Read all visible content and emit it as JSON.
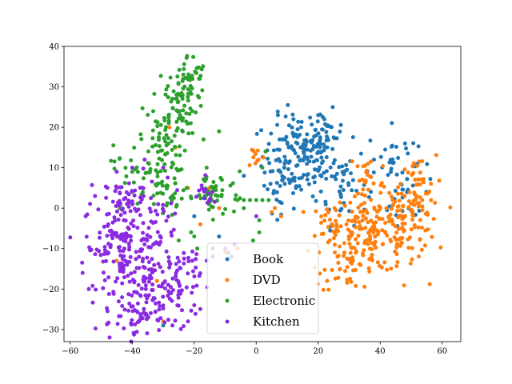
{
  "chart_data": {
    "type": "scatter",
    "title": "",
    "xlabel": "",
    "ylabel": "",
    "xlim": [
      -62,
      66
    ],
    "ylim": [
      -33,
      40
    ],
    "xticks": [
      -60,
      -40,
      -20,
      0,
      20,
      40,
      60
    ],
    "yticks": [
      -30,
      -20,
      -10,
      0,
      10,
      20,
      30,
      40
    ],
    "grid": false,
    "legend_position": "lower-center",
    "series": [
      {
        "name": "Book",
        "color": "#1f77b4",
        "clusters": [
          {
            "cx": 14,
            "cy": 13,
            "sx": 6,
            "sy": 5,
            "n": 150
          },
          {
            "cx": 28,
            "cy": 6,
            "sx": 4,
            "sy": 5,
            "n": 45
          },
          {
            "cx": 44,
            "cy": 12,
            "sx": 4,
            "sy": 4,
            "n": 30
          },
          {
            "cx": 48,
            "cy": 2,
            "sx": 4,
            "sy": 3,
            "n": 20
          },
          {
            "cx": 22,
            "cy": 18,
            "sx": 3,
            "sy": 3,
            "n": 30
          },
          {
            "cx": 8,
            "cy": 5,
            "sx": 3,
            "sy": 3,
            "n": 20
          }
        ],
        "points": [
          [
            -9,
            -11
          ],
          [
            -14,
            -10
          ],
          [
            -4,
            8
          ],
          [
            -30,
            -29
          ],
          [
            -12,
            -7
          ],
          [
            7,
            23
          ],
          [
            22,
            22
          ],
          [
            20,
            23
          ],
          [
            12,
            22
          ],
          [
            38,
            12
          ],
          [
            48,
            16
          ],
          [
            52,
            11
          ],
          [
            -6,
            -10
          ],
          [
            -20,
            -2
          ]
        ]
      },
      {
        "name": "DVD",
        "color": "#ff7f0e",
        "clusters": [
          {
            "cx": 38,
            "cy": -6,
            "sx": 8,
            "sy": 5,
            "n": 180
          },
          {
            "cx": 30,
            "cy": -14,
            "sx": 5,
            "sy": 3,
            "n": 40
          },
          {
            "cx": 50,
            "cy": -3,
            "sx": 4,
            "sy": 4,
            "n": 50
          },
          {
            "cx": 52,
            "cy": 5,
            "sx": 3,
            "sy": 4,
            "n": 35
          },
          {
            "cx": 36,
            "cy": 7,
            "sx": 3,
            "sy": 4,
            "n": 20
          },
          {
            "cx": 24,
            "cy": -4,
            "sx": 3,
            "sy": 3,
            "n": 25
          },
          {
            "cx": 0,
            "cy": 13,
            "sx": 1.5,
            "sy": 1.5,
            "n": 10
          }
        ],
        "points": [
          [
            6,
            0
          ],
          [
            8,
            -2
          ],
          [
            5,
            -1
          ],
          [
            -6,
            -10
          ],
          [
            -8,
            -12
          ],
          [
            -10,
            -11
          ],
          [
            -22,
            5
          ],
          [
            -26,
            15
          ],
          [
            -28,
            20
          ],
          [
            -32,
            -18
          ],
          [
            -30,
            -28
          ],
          [
            -12,
            0
          ],
          [
            -18,
            -4
          ],
          [
            42,
            0
          ],
          [
            44,
            2
          ],
          [
            -45,
            -13
          ],
          [
            -15,
            5
          ]
        ]
      },
      {
        "name": "Electronic",
        "color": "#2ca02c",
        "clusters": [
          {
            "cx": -22,
            "cy": 32,
            "sx": 3,
            "sy": 3,
            "n": 50
          },
          {
            "cx": -25,
            "cy": 25,
            "sx": 3,
            "sy": 3,
            "n": 45
          },
          {
            "cx": -30,
            "cy": 17,
            "sx": 4,
            "sy": 4,
            "n": 50
          },
          {
            "cx": -36,
            "cy": 10,
            "sx": 5,
            "sy": 4,
            "n": 45
          },
          {
            "cx": -28,
            "cy": 3,
            "sx": 4,
            "sy": 3,
            "n": 30
          },
          {
            "cx": -14,
            "cy": 2,
            "sx": 3,
            "sy": 3,
            "n": 30
          },
          {
            "cx": -12,
            "cy": 5,
            "sx": 4,
            "sy": 2,
            "n": 20
          }
        ],
        "points": [
          [
            -16,
            10
          ],
          [
            -17,
            17
          ],
          [
            -12,
            19
          ],
          [
            -6,
            2
          ],
          [
            -4,
            2
          ],
          [
            -2,
            2
          ],
          [
            0,
            2
          ],
          [
            2,
            2
          ],
          [
            4,
            2
          ],
          [
            1,
            -3
          ],
          [
            1,
            -6
          ],
          [
            2,
            10
          ],
          [
            3,
            14
          ],
          [
            -1,
            -8
          ],
          [
            -4,
            0
          ],
          [
            -21,
            -6
          ],
          [
            -20,
            -7
          ],
          [
            -19,
            -10
          ],
          [
            -25,
            -8
          ],
          [
            -33,
            1
          ],
          [
            -40,
            9
          ],
          [
            -44,
            0
          ],
          [
            -40,
            4
          ]
        ]
      },
      {
        "name": "Kitchen",
        "color": "#8a2be2",
        "clusters": [
          {
            "cx": -45,
            "cy": -10,
            "sx": 5,
            "sy": 7,
            "n": 130
          },
          {
            "cx": -34,
            "cy": -20,
            "sx": 5,
            "sy": 5,
            "n": 100
          },
          {
            "cx": -24,
            "cy": -18,
            "sx": 3,
            "sy": 5,
            "n": 50
          },
          {
            "cx": -41,
            "cy": 2,
            "sx": 4,
            "sy": 3,
            "n": 40
          },
          {
            "cx": -32,
            "cy": -7,
            "sx": 4,
            "sy": 5,
            "n": 50
          },
          {
            "cx": -38,
            "cy": -27,
            "sx": 4,
            "sy": 2,
            "n": 30
          },
          {
            "cx": -17,
            "cy": 3,
            "sx": 2,
            "sy": 2,
            "n": 15
          }
        ],
        "points": [
          [
            -55,
            -2
          ],
          [
            -56,
            -16
          ],
          [
            -54,
            -20
          ],
          [
            -8,
            -12
          ],
          [
            -10,
            -10
          ],
          [
            -7,
            -9
          ],
          [
            0,
            -2
          ],
          [
            -14,
            -12
          ],
          [
            -16,
            -13
          ],
          [
            -20,
            -24
          ],
          [
            -22,
            -28
          ],
          [
            -27,
            -29
          ],
          [
            -40,
            10
          ],
          [
            -45,
            9
          ],
          [
            -48,
            5
          ],
          [
            -52,
            3
          ],
          [
            -36,
            12
          ],
          [
            -30,
            10
          ]
        ]
      }
    ]
  }
}
